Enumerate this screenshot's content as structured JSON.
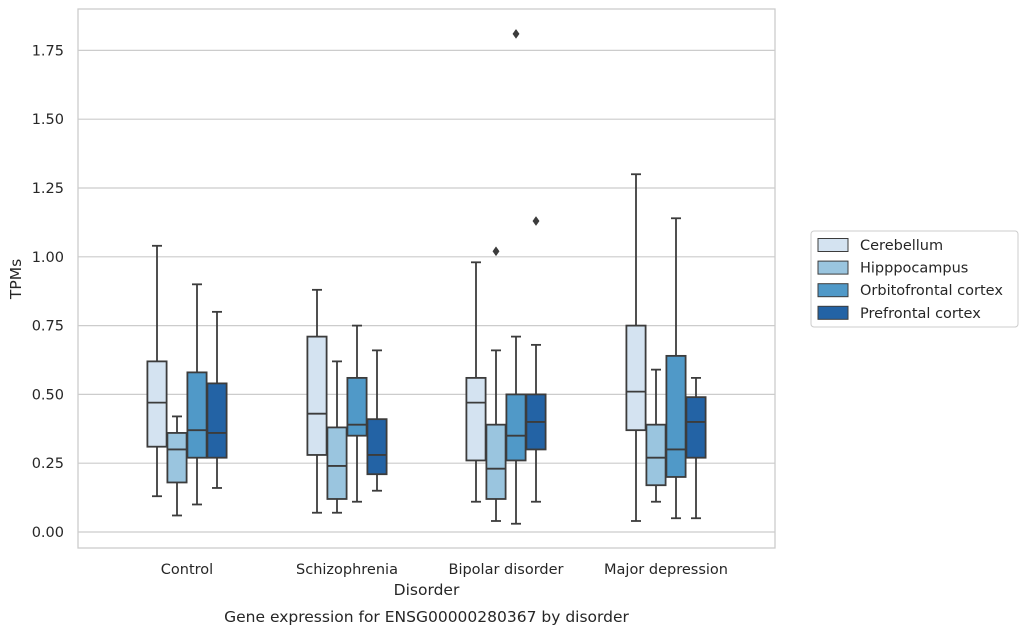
{
  "chart_data": {
    "type": "box",
    "title": "",
    "caption": "Gene expression for ENSG00000280367 by disorder",
    "xlabel": "Disorder",
    "ylabel": "TPMs",
    "ylim": [
      -0.05,
      1.9
    ],
    "yticks": [
      "0.00",
      "0.25",
      "0.50",
      "0.75",
      "1.00",
      "1.25",
      "1.50",
      "1.75"
    ],
    "grid": true,
    "legend_position": "right",
    "categories": [
      "Control",
      "Schizophrenia",
      "Bipolar disorder",
      "Major depression"
    ],
    "series": [
      {
        "name": "Cerebellum",
        "color": "#d4e3f1",
        "boxes": [
          {
            "whislo": 0.13,
            "q1": 0.31,
            "med": 0.47,
            "q3": 0.62,
            "whishi": 1.04,
            "fliers": []
          },
          {
            "whislo": 0.07,
            "q1": 0.28,
            "med": 0.43,
            "q3": 0.71,
            "whishi": 0.88,
            "fliers": []
          },
          {
            "whislo": 0.11,
            "q1": 0.26,
            "med": 0.47,
            "q3": 0.56,
            "whishi": 0.98,
            "fliers": []
          },
          {
            "whislo": 0.04,
            "q1": 0.37,
            "med": 0.51,
            "q3": 0.75,
            "whishi": 1.3,
            "fliers": []
          }
        ]
      },
      {
        "name": "Hipppocampus",
        "color": "#9ac5df",
        "boxes": [
          {
            "whislo": 0.06,
            "q1": 0.18,
            "med": 0.3,
            "q3": 0.36,
            "whishi": 0.42,
            "fliers": []
          },
          {
            "whislo": 0.07,
            "q1": 0.12,
            "med": 0.24,
            "q3": 0.38,
            "whishi": 0.62,
            "fliers": []
          },
          {
            "whislo": 0.04,
            "q1": 0.12,
            "med": 0.23,
            "q3": 0.39,
            "whishi": 0.66,
            "fliers": [
              1.02
            ]
          },
          {
            "whislo": 0.11,
            "q1": 0.17,
            "med": 0.27,
            "q3": 0.39,
            "whishi": 0.59,
            "fliers": []
          }
        ]
      },
      {
        "name": "Orbitofrontal cortex",
        "color": "#5099c8",
        "boxes": [
          {
            "whislo": 0.1,
            "q1": 0.27,
            "med": 0.37,
            "q3": 0.58,
            "whishi": 0.9,
            "fliers": []
          },
          {
            "whislo": 0.11,
            "q1": 0.35,
            "med": 0.39,
            "q3": 0.56,
            "whishi": 0.75,
            "fliers": []
          },
          {
            "whislo": 0.03,
            "q1": 0.26,
            "med": 0.35,
            "q3": 0.5,
            "whishi": 0.71,
            "fliers": [
              1.81
            ]
          },
          {
            "whislo": 0.05,
            "q1": 0.2,
            "med": 0.3,
            "q3": 0.64,
            "whishi": 1.14,
            "fliers": []
          }
        ]
      },
      {
        "name": "Prefrontal cortex",
        "color": "#2363a5",
        "boxes": [
          {
            "whislo": 0.16,
            "q1": 0.27,
            "med": 0.36,
            "q3": 0.54,
            "whishi": 0.8,
            "fliers": []
          },
          {
            "whislo": 0.15,
            "q1": 0.21,
            "med": 0.28,
            "q3": 0.41,
            "whishi": 0.66,
            "fliers": []
          },
          {
            "whislo": 0.11,
            "q1": 0.3,
            "med": 0.4,
            "q3": 0.5,
            "whishi": 0.68,
            "fliers": [
              1.13
            ]
          },
          {
            "whislo": 0.05,
            "q1": 0.27,
            "med": 0.4,
            "q3": 0.49,
            "whishi": 0.56,
            "fliers": []
          }
        ]
      }
    ]
  }
}
